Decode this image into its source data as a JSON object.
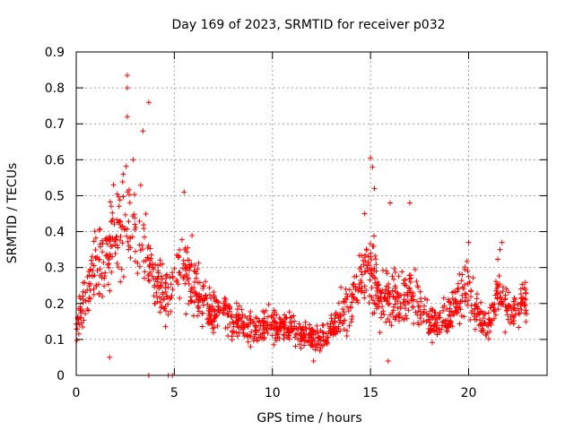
{
  "chart_data": {
    "type": "scatter",
    "title": "Day 169 of 2023, SRMTID for receiver p032",
    "xlabel": "GPS time / hours",
    "ylabel": "SRMTID / TECUs",
    "xlim": [
      0,
      24
    ],
    "ylim": [
      0,
      0.9
    ],
    "xticks": [
      0,
      5,
      10,
      15,
      20
    ],
    "xtick_labels": [
      "0",
      "5",
      "10",
      "15",
      "20"
    ],
    "yticks": [
      0,
      0.1,
      0.2,
      0.3,
      0.4,
      0.5,
      0.6,
      0.7,
      0.8,
      0.9
    ],
    "ytick_labels": [
      "0",
      "0.1",
      "0.2",
      "0.3",
      "0.4",
      "0.5",
      "0.6",
      "0.7",
      "0.8",
      "0.9"
    ],
    "grid": true,
    "marker": "+",
    "color": "#ff0000",
    "x_range_of_data": [
      0,
      23
    ],
    "baseline_trend": [
      {
        "x": 0.0,
        "y": 0.15
      },
      {
        "x": 0.5,
        "y": 0.22
      },
      {
        "x": 1.0,
        "y": 0.3
      },
      {
        "x": 1.5,
        "y": 0.33
      },
      {
        "x": 2.0,
        "y": 0.38
      },
      {
        "x": 2.5,
        "y": 0.44
      },
      {
        "x": 3.0,
        "y": 0.38
      },
      {
        "x": 3.5,
        "y": 0.36
      },
      {
        "x": 4.0,
        "y": 0.24
      },
      {
        "x": 4.5,
        "y": 0.22
      },
      {
        "x": 5.0,
        "y": 0.27
      },
      {
        "x": 5.5,
        "y": 0.3
      },
      {
        "x": 6.0,
        "y": 0.26
      },
      {
        "x": 6.5,
        "y": 0.2
      },
      {
        "x": 7.0,
        "y": 0.18
      },
      {
        "x": 7.5,
        "y": 0.2
      },
      {
        "x": 8.0,
        "y": 0.15
      },
      {
        "x": 9.0,
        "y": 0.13
      },
      {
        "x": 10.0,
        "y": 0.14
      },
      {
        "x": 11.0,
        "y": 0.13
      },
      {
        "x": 12.0,
        "y": 0.1
      },
      {
        "x": 12.5,
        "y": 0.1
      },
      {
        "x": 13.0,
        "y": 0.13
      },
      {
        "x": 13.5,
        "y": 0.17
      },
      {
        "x": 14.0,
        "y": 0.2
      },
      {
        "x": 14.5,
        "y": 0.26
      },
      {
        "x": 15.0,
        "y": 0.3
      },
      {
        "x": 15.5,
        "y": 0.2
      },
      {
        "x": 16.0,
        "y": 0.22
      },
      {
        "x": 16.5,
        "y": 0.2
      },
      {
        "x": 17.0,
        "y": 0.24
      },
      {
        "x": 17.5,
        "y": 0.2
      },
      {
        "x": 18.0,
        "y": 0.15
      },
      {
        "x": 18.5,
        "y": 0.14
      },
      {
        "x": 19.0,
        "y": 0.16
      },
      {
        "x": 19.5,
        "y": 0.22
      },
      {
        "x": 20.0,
        "y": 0.25
      },
      {
        "x": 20.5,
        "y": 0.17
      },
      {
        "x": 21.0,
        "y": 0.13
      },
      {
        "x": 21.5,
        "y": 0.23
      },
      {
        "x": 22.0,
        "y": 0.18
      },
      {
        "x": 22.5,
        "y": 0.2
      },
      {
        "x": 23.0,
        "y": 0.2
      }
    ],
    "notable_points": [
      {
        "x": 2.6,
        "y": 0.835
      },
      {
        "x": 2.6,
        "y": 0.8
      },
      {
        "x": 2.6,
        "y": 0.72
      },
      {
        "x": 3.7,
        "y": 0.76
      },
      {
        "x": 3.4,
        "y": 0.68
      },
      {
        "x": 2.9,
        "y": 0.6
      },
      {
        "x": 2.4,
        "y": 0.56
      },
      {
        "x": 1.9,
        "y": 0.53
      },
      {
        "x": 5.5,
        "y": 0.51
      },
      {
        "x": 15.0,
        "y": 0.605
      },
      {
        "x": 15.1,
        "y": 0.58
      },
      {
        "x": 15.2,
        "y": 0.52
      },
      {
        "x": 16.0,
        "y": 0.48
      },
      {
        "x": 17.0,
        "y": 0.48
      },
      {
        "x": 14.7,
        "y": 0.45
      },
      {
        "x": 20.0,
        "y": 0.37
      },
      {
        "x": 21.7,
        "y": 0.37
      },
      {
        "x": 21.6,
        "y": 0.35
      },
      {
        "x": 3.7,
        "y": 0.0
      },
      {
        "x": 4.7,
        "y": 0.0
      },
      {
        "x": 4.9,
        "y": 0.0
      },
      {
        "x": 15.9,
        "y": 0.04
      },
      {
        "x": 12.1,
        "y": 0.04
      },
      {
        "x": 1.7,
        "y": 0.05
      }
    ]
  }
}
